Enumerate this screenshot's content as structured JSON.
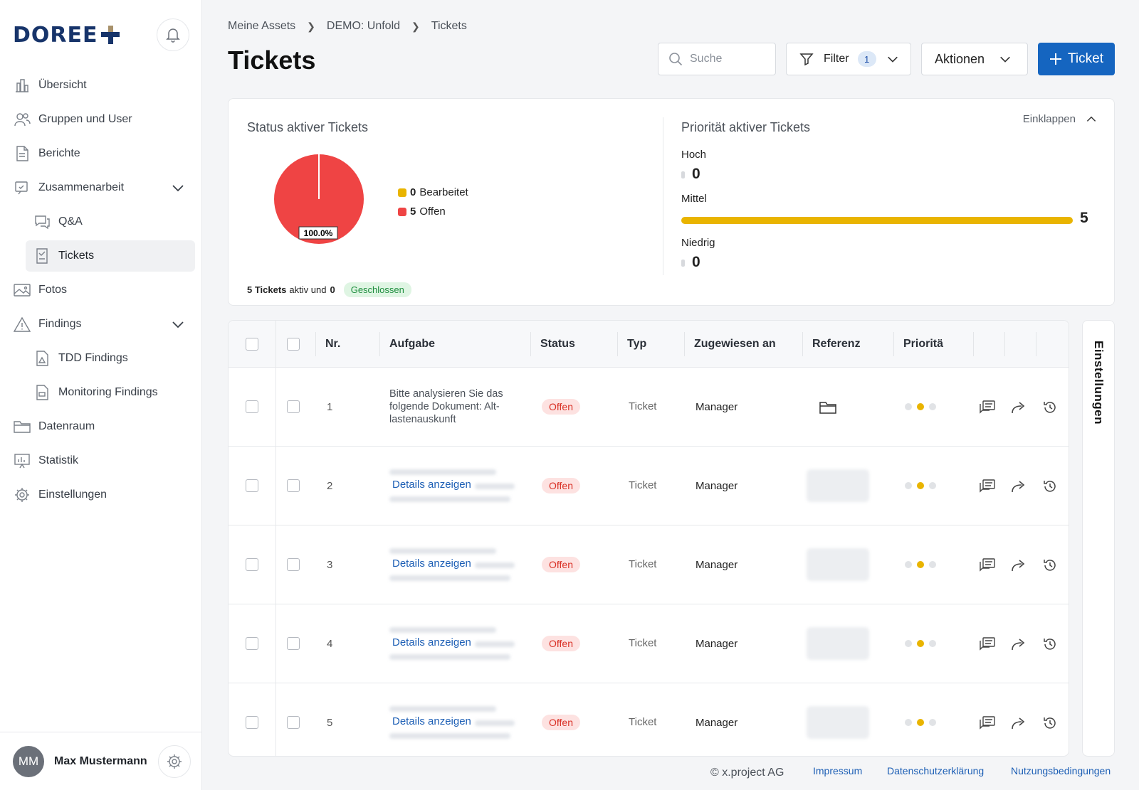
{
  "brand": {
    "logo_text": "DOREE",
    "accent": "#1565c0",
    "logo_color": "#17346a",
    "logo_gold": "#a8916b"
  },
  "sidebar": {
    "items": [
      {
        "label": "Übersicht",
        "icon": "chart-icon"
      },
      {
        "label": "Gruppen und User",
        "icon": "users-icon"
      },
      {
        "label": "Berichte",
        "icon": "document-icon"
      },
      {
        "label": "Zusammenarbeit",
        "icon": "collaboration-icon",
        "expandable": true
      },
      {
        "label": "Q&A",
        "icon": "chat-icon",
        "sub": true
      },
      {
        "label": "Tickets",
        "icon": "ticket-icon",
        "sub": true,
        "active": true
      },
      {
        "label": "Fotos",
        "icon": "image-icon"
      },
      {
        "label": "Findings",
        "icon": "warning-icon",
        "expandable": true
      },
      {
        "label": "TDD Findings",
        "icon": "file-warning-icon",
        "sub": true
      },
      {
        "label": "Monitoring Findings",
        "icon": "file-monitor-icon",
        "sub": true
      },
      {
        "label": "Datenraum",
        "icon": "folder-icon"
      },
      {
        "label": "Statistik",
        "icon": "statistics-icon"
      },
      {
        "label": "Einstellungen",
        "icon": "gear-icon"
      }
    ],
    "user": {
      "initials": "MM",
      "name": "Max Mustermann"
    }
  },
  "breadcrumb": [
    "Meine Assets",
    "DEMO: Unfold",
    "Tickets"
  ],
  "page_title": "Tickets",
  "toolbar": {
    "search_placeholder": "Suche",
    "filter_label": "Filter",
    "filter_count": "1",
    "actions_label": "Aktionen",
    "ticket_label": "Ticket"
  },
  "summary": {
    "collapse_label": "Einklappen",
    "status_title": "Status aktiver Tickets",
    "pie_label": "100.0%",
    "legend": [
      {
        "count": "0",
        "label": "Bearbeitet",
        "color": "#e9b400"
      },
      {
        "count": "5",
        "label": "Offen",
        "color": "#ef4444"
      }
    ],
    "active_count": "5 Tickets",
    "active_text": "aktiv und",
    "closed_count": "0",
    "closed_label": "Geschlossen",
    "priority_title": "Priorität aktiver Tickets",
    "priority": [
      {
        "label": "Hoch",
        "value": "0"
      },
      {
        "label": "Mittel",
        "value": "5"
      },
      {
        "label": "Niedrig",
        "value": "0"
      }
    ]
  },
  "chart_data": {
    "type": "pie",
    "title": "Status aktiver Tickets",
    "categories": [
      "Bearbeitet",
      "Offen"
    ],
    "values": [
      0,
      5
    ],
    "colors": [
      "#e9b400",
      "#ef4444"
    ]
  },
  "table": {
    "columns": [
      "Nr.",
      "Aufgabe",
      "Status",
      "Typ",
      "Zugewiesen an",
      "Referenz",
      "Prioritä"
    ],
    "rows": [
      {
        "nr": "1",
        "task": "Bitte analysieren Sie das folgende Dokument: Alt-lastenauskunft",
        "status": "Offen",
        "type": "Ticket",
        "assignee": "Manager"
      },
      {
        "nr": "2",
        "task": "Details anzeigen",
        "status": "Offen",
        "type": "Ticket",
        "assignee": "Manager"
      },
      {
        "nr": "3",
        "task": "Details anzeigen",
        "status": "Offen",
        "type": "Ticket",
        "assignee": "Manager"
      },
      {
        "nr": "4",
        "task": "Details anzeigen",
        "status": "Offen",
        "type": "Ticket",
        "assignee": "Manager"
      },
      {
        "nr": "5",
        "task": "Details anzeigen",
        "status": "Offen",
        "type": "Ticket",
        "assignee": "Manager"
      }
    ]
  },
  "settings_tab": "Einstellungen",
  "footer": {
    "copyright": "© x.project AG",
    "links": [
      "Impressum",
      "Datenschutzerklärung",
      "Nutzungsbedingungen"
    ]
  }
}
